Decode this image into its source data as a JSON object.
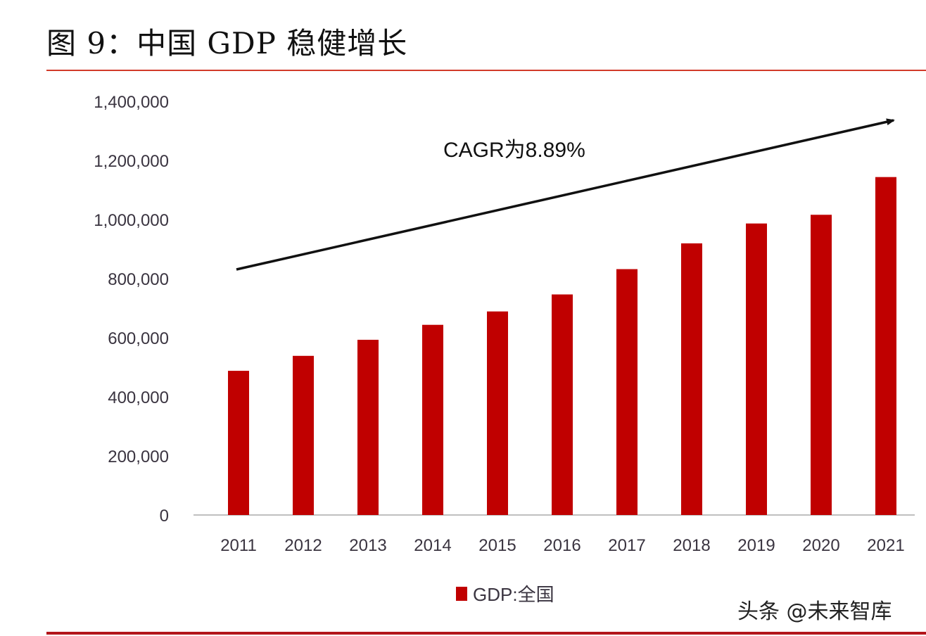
{
  "header": {
    "title": "图 9：中国 GDP 稳健增长"
  },
  "watermark": "头条 @未来智库",
  "colors": {
    "bar": "#c00000",
    "accent_rule": "#d23a2a",
    "axis": "#aaaaaa",
    "arrow": "#111111"
  },
  "chart_data": {
    "type": "bar",
    "title": "图 9：中国 GDP 稳健增长",
    "xlabel": "",
    "ylabel": "",
    "categories": [
      "2011",
      "2012",
      "2013",
      "2014",
      "2015",
      "2016",
      "2017",
      "2018",
      "2019",
      "2020",
      "2021"
    ],
    "series": [
      {
        "name": "GDP:全国",
        "values": [
          487940,
          538580,
          592963,
          643563,
          688858,
          746395,
          832036,
          919281,
          986515,
          1015986,
          1143670
        ]
      }
    ],
    "ylim": [
      0,
      1400000
    ],
    "yticks": [
      0,
      200000,
      400000,
      600000,
      800000,
      1000000,
      1200000,
      1400000
    ],
    "ytick_labels": [
      "0",
      "200,000",
      "400,000",
      "600,000",
      "800,000",
      "1,000,000",
      "1,200,000",
      "1,400,000"
    ],
    "grid": false,
    "legend": {
      "position": "bottom-center",
      "entries": [
        "GDP:全国"
      ]
    },
    "annotations": [
      {
        "text": "CAGR为8.89%",
        "type": "trend-arrow",
        "direction": "up-right"
      }
    ]
  }
}
